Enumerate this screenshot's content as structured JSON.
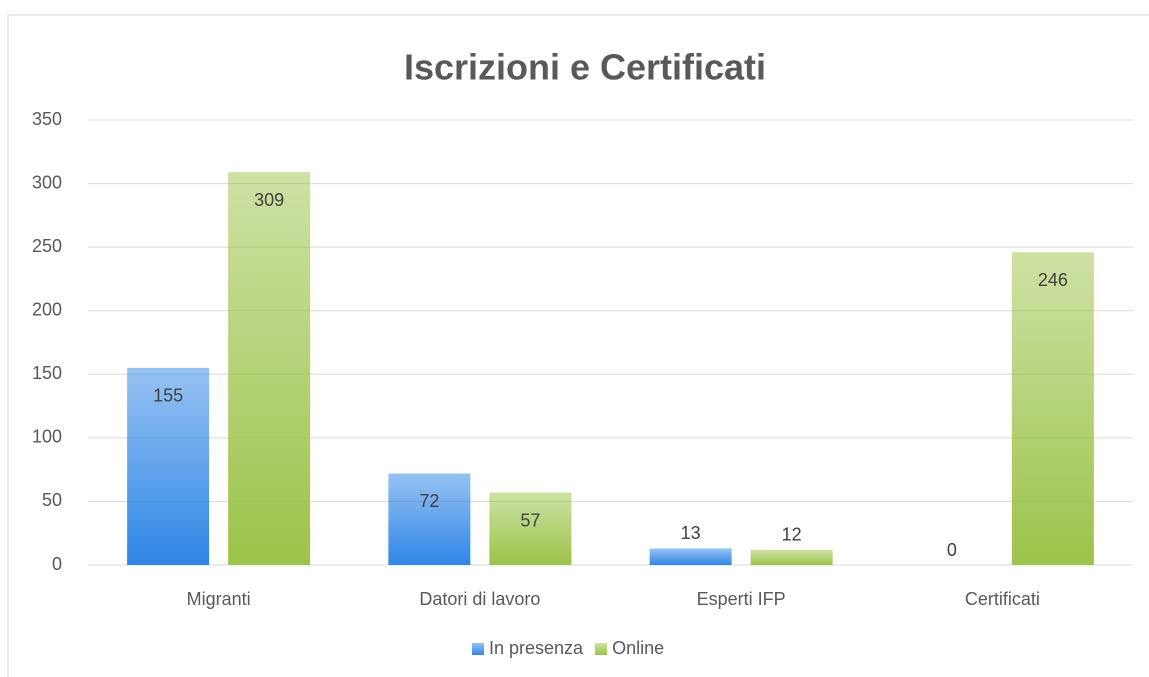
{
  "chart_data": {
    "type": "bar",
    "title": "Iscrizioni e Certificati",
    "categories": [
      "Migranti",
      "Datori di lavoro",
      "Esperti IFP",
      "Certificati"
    ],
    "series": [
      {
        "name": "In presenza",
        "color": "#2f86e6",
        "values": [
          155,
          72,
          13,
          0
        ]
      },
      {
        "name": "Online",
        "color": "#9cc34a",
        "values": [
          309,
          57,
          12,
          246
        ]
      }
    ],
    "ylim": [
      0,
      350
    ],
    "yticks": [
      0,
      50,
      100,
      150,
      200,
      250,
      300,
      350
    ],
    "grid": true,
    "legend": "bottom"
  }
}
